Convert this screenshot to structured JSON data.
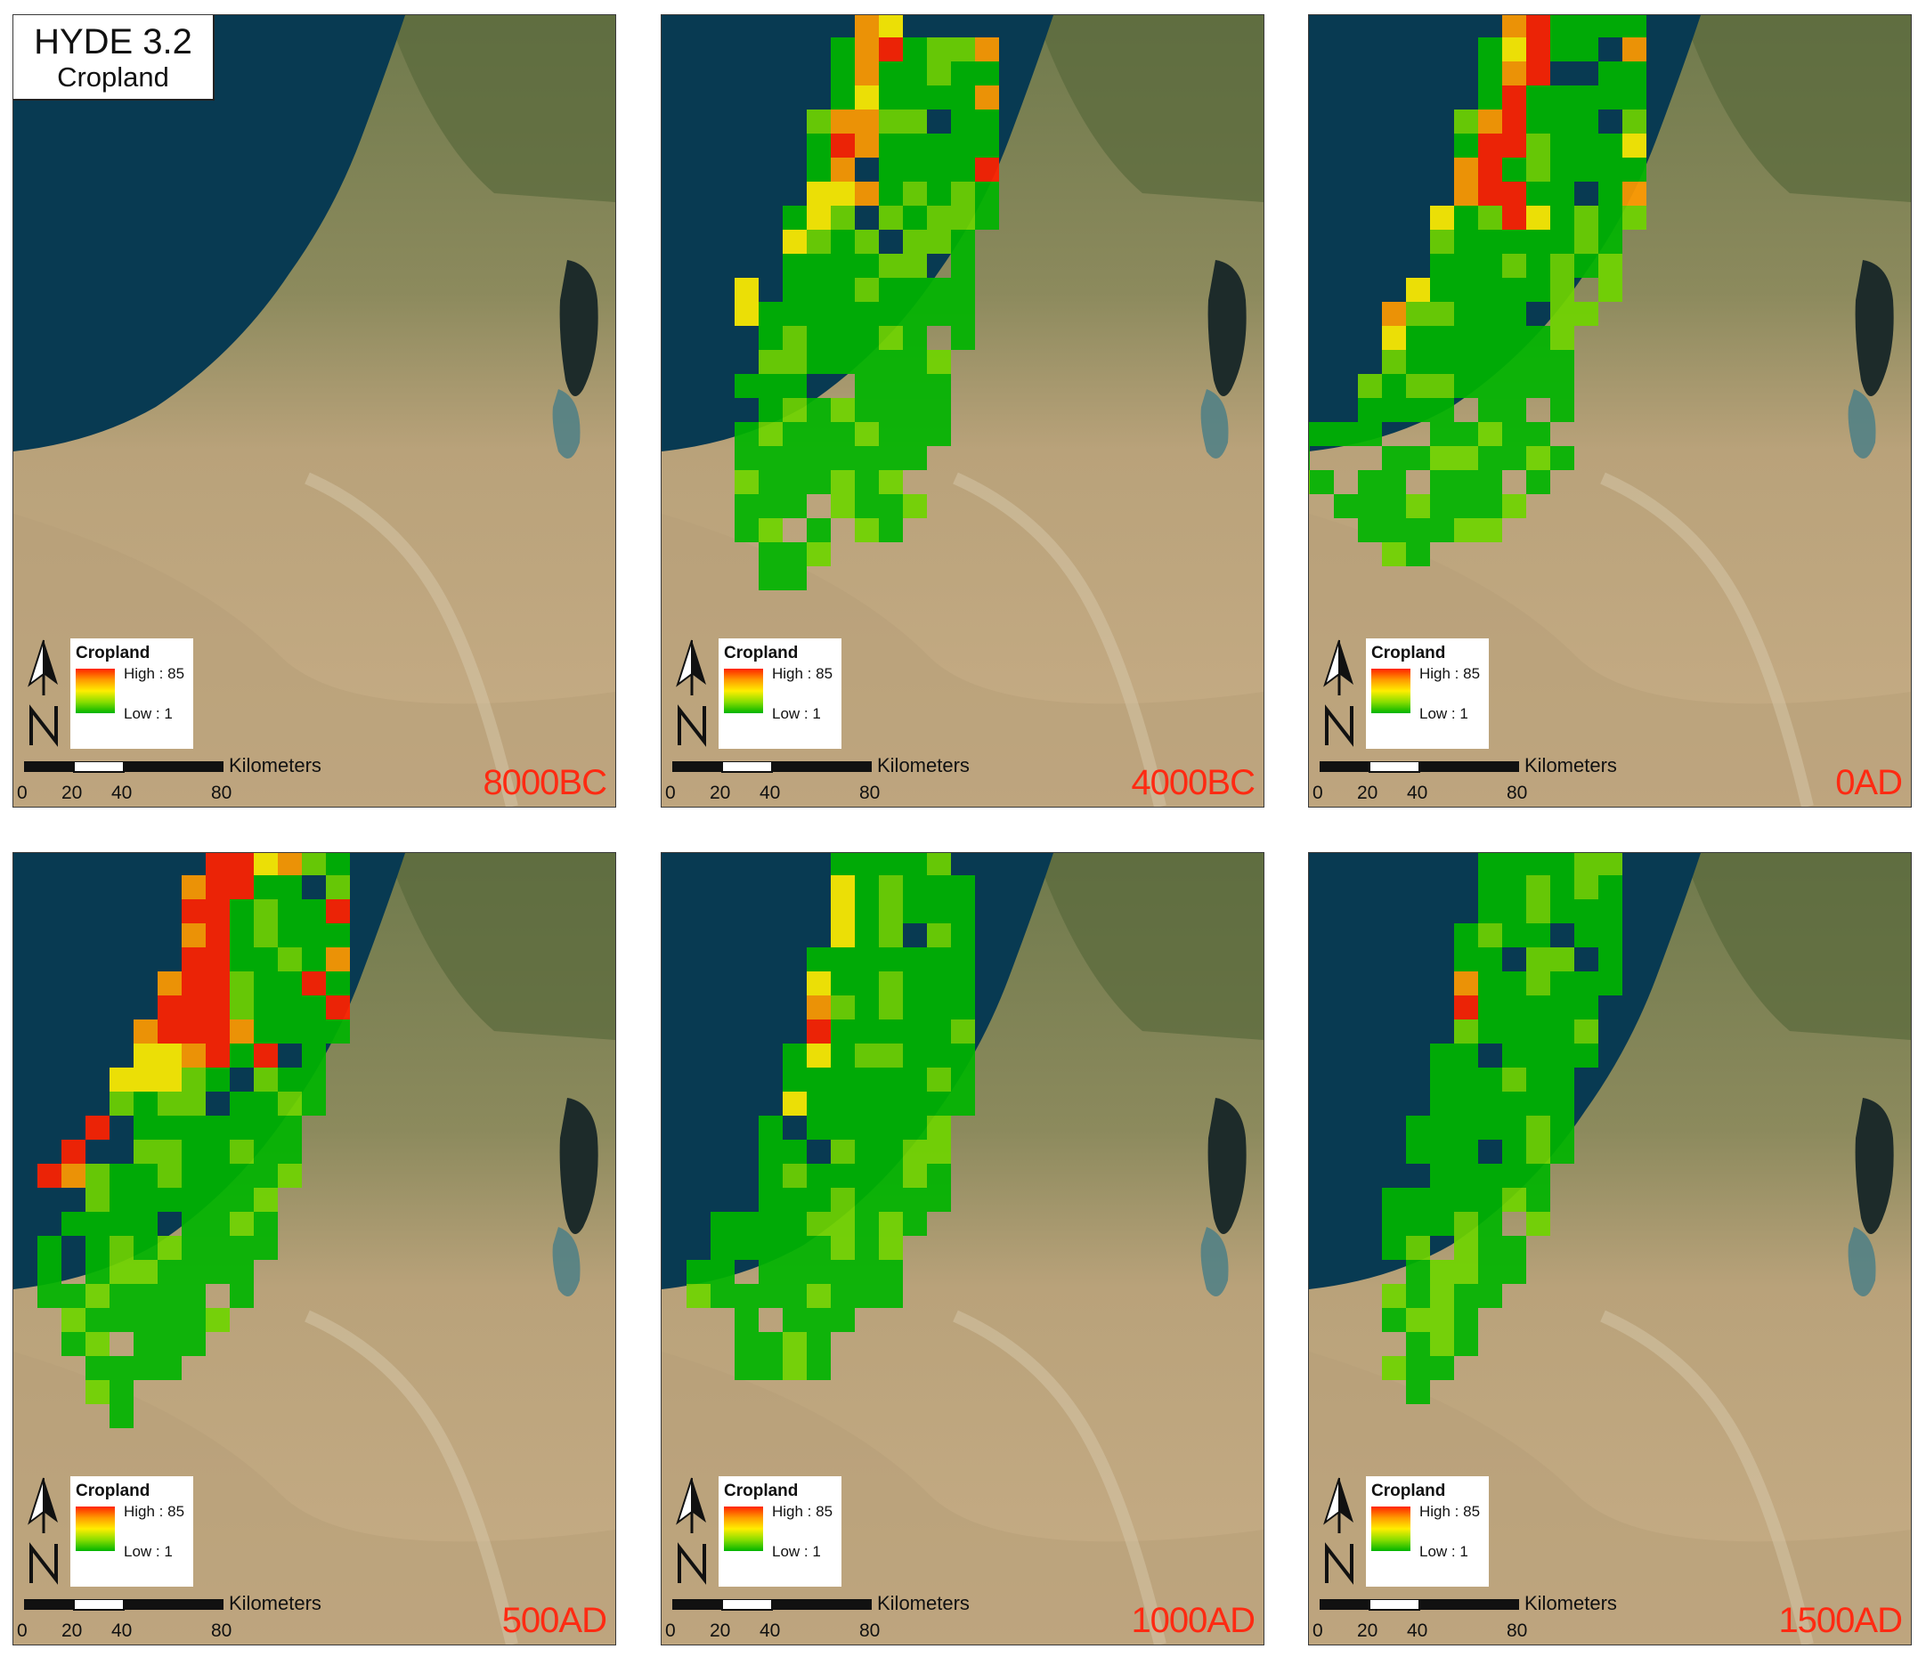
{
  "header": {
    "title": "HYDE 3.2",
    "subtitle": "Cropland"
  },
  "legend": {
    "title": "Cropland",
    "high": "High : 85",
    "low": "Low : 1"
  },
  "scale": {
    "unit": "Kilometers",
    "ticks": [
      "0",
      "20",
      "40",
      "80"
    ]
  },
  "colors": {
    "sea": "#083a52",
    "land": "#c9b08a",
    "high": "#ff2200",
    "mid": "#ffee00",
    "low": "#00b400"
  },
  "panels": [
    {
      "year": "8000BC"
    },
    {
      "year": "4000BC"
    },
    {
      "year": "0AD"
    },
    {
      "year": "500AD"
    },
    {
      "year": "1000AD"
    },
    {
      "year": "1500AD"
    }
  ]
}
